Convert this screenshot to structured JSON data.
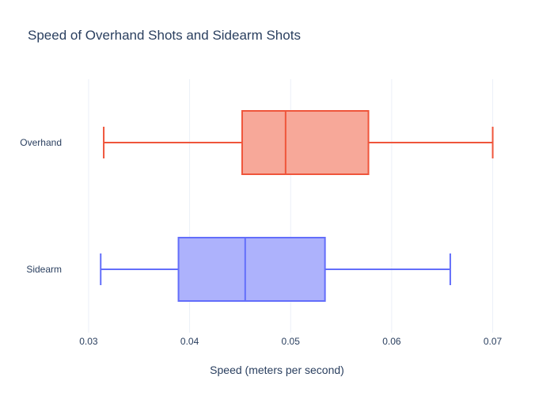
{
  "chart_data": {
    "type": "box",
    "orientation": "horizontal",
    "title": "Speed of Overhand Shots and Sidearm Shots",
    "xlabel": "Speed (meters per second)",
    "ylabel": "",
    "xlim": [
      0.0275,
      0.0745
    ],
    "x_ticks": [
      0.03,
      0.04,
      0.05,
      0.06,
      0.07
    ],
    "x_tick_labels": [
      "0.03",
      "0.04",
      "0.05",
      "0.06",
      "0.07"
    ],
    "grid": true,
    "legend": "none",
    "series": [
      {
        "category": "Overhand",
        "min": 0.0315,
        "q1": 0.0452,
        "median": 0.0495,
        "q3": 0.0577,
        "max": 0.07,
        "line_color": "#EF553B",
        "fill_color": "#F7A899"
      },
      {
        "category": "Sidearm",
        "min": 0.0312,
        "q1": 0.0389,
        "median": 0.0455,
        "q3": 0.0534,
        "max": 0.0658,
        "line_color": "#636EFA",
        "fill_color": "#ADB2FC"
      }
    ]
  },
  "colors": {
    "text": "#2a3f5f",
    "grid": "#ebf0f8",
    "background": "#ffffff"
  }
}
